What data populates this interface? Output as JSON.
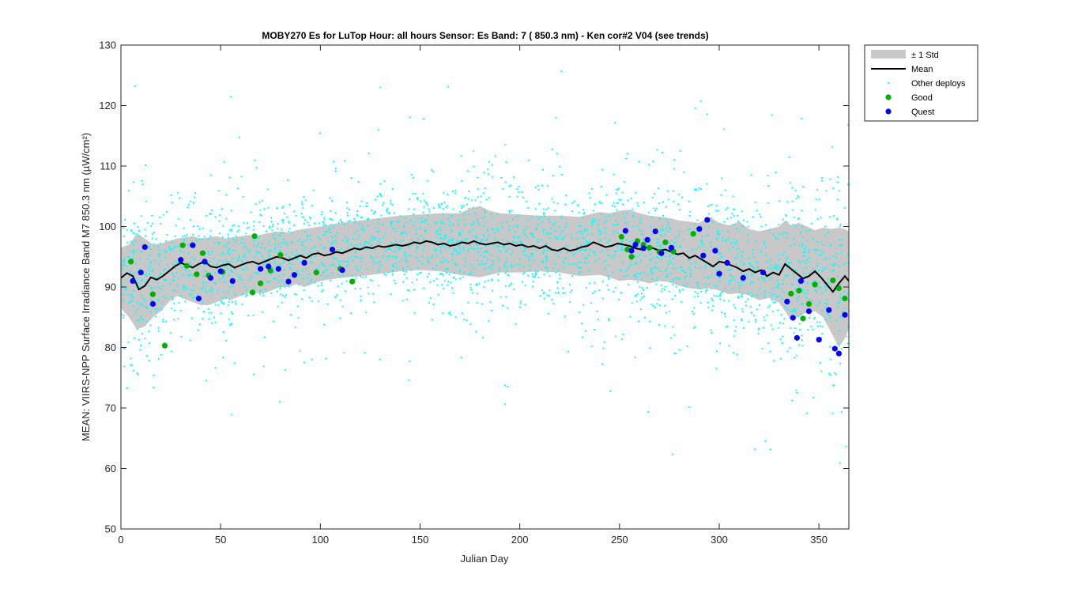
{
  "chart_data": {
    "type": "scatter",
    "title": "MOBY270   Es for LuTop  Hour: all hours  Sensor: Es Band: 7 ( 850.3 nm)  - Ken cor#2 V04 (see trends)",
    "xlabel": "Julian Day",
    "ylabel": "MEAN: VIIRS-NPP Surface Irradiance Band M7 850.3 nm (µW/cm²)",
    "xlim": [
      0,
      365
    ],
    "ylim": [
      50,
      130
    ],
    "x_ticks": [
      0,
      50,
      100,
      150,
      200,
      250,
      300,
      350
    ],
    "y_ticks": [
      50,
      60,
      70,
      80,
      90,
      100,
      110,
      120,
      130
    ],
    "grid": false,
    "legend_position": "outside-top-right",
    "colors": {
      "std_band": "#c8c8c8",
      "mean_line": "#000000",
      "other_deploys": "#00ffff",
      "good": "#00b000",
      "quest": "#0000ff"
    },
    "legend": [
      {
        "key": "std",
        "label": "± 1 Std"
      },
      {
        "key": "mean",
        "label": "Mean"
      },
      {
        "key": "other",
        "label": "Other deploys"
      },
      {
        "key": "good",
        "label": "Good"
      },
      {
        "key": "quest",
        "label": "Quest"
      }
    ],
    "series": [
      {
        "name": "Mean",
        "x": [
          0,
          3,
          6,
          9,
          12,
          15,
          18,
          21,
          24,
          27,
          30,
          33,
          36,
          39,
          42,
          45,
          48,
          51,
          54,
          57,
          60,
          63,
          66,
          69,
          72,
          75,
          78,
          81,
          84,
          87,
          90,
          93,
          96,
          99,
          102,
          105,
          108,
          111,
          114,
          117,
          120,
          123,
          126,
          129,
          132,
          135,
          138,
          141,
          144,
          147,
          150,
          153,
          156,
          159,
          162,
          165,
          168,
          171,
          174,
          177,
          180,
          183,
          186,
          189,
          192,
          195,
          198,
          201,
          204,
          207,
          210,
          213,
          216,
          219,
          222,
          225,
          228,
          231,
          234,
          237,
          240,
          243,
          246,
          249,
          252,
          255,
          258,
          261,
          264,
          267,
          270,
          273,
          276,
          279,
          282,
          285,
          288,
          291,
          294,
          297,
          300,
          303,
          306,
          309,
          312,
          315,
          318,
          321,
          324,
          327,
          330,
          333,
          336,
          339,
          342,
          345,
          348,
          351,
          354,
          357,
          360,
          363,
          365
        ],
        "y": [
          91.5,
          92.3,
          91.8,
          89.6,
          90.2,
          91.6,
          91.2,
          91.8,
          92.6,
          93.4,
          94.0,
          93.6,
          93.2,
          93.8,
          94.2,
          93.4,
          93.2,
          93.6,
          93.8,
          93.2,
          93.6,
          94.0,
          94.2,
          93.8,
          94.2,
          94.6,
          95.0,
          94.8,
          94.4,
          94.8,
          95.2,
          94.8,
          95.4,
          95.6,
          95.2,
          95.4,
          95.8,
          95.6,
          96.0,
          96.4,
          96.2,
          96.6,
          96.4,
          96.8,
          96.6,
          96.8,
          97.0,
          96.8,
          97.0,
          97.4,
          97.2,
          97.6,
          97.4,
          97.0,
          97.2,
          96.8,
          97.0,
          97.4,
          97.2,
          97.6,
          97.2,
          97.0,
          97.2,
          97.4,
          97.0,
          97.2,
          96.8,
          97.0,
          96.6,
          96.8,
          96.4,
          96.8,
          96.2,
          96.0,
          96.4,
          96.0,
          96.2,
          96.6,
          96.8,
          97.4,
          97.0,
          96.6,
          96.8,
          97.2,
          97.0,
          96.8,
          96.4,
          96.2,
          96.6,
          96.4,
          96.0,
          96.2,
          95.8,
          95.4,
          95.6,
          94.8,
          95.2,
          94.6,
          94.0,
          93.4,
          94.2,
          94.0,
          93.6,
          93.2,
          92.6,
          93.0,
          92.4,
          92.8,
          91.8,
          92.4,
          92.0,
          93.8,
          93.0,
          92.2,
          91.4,
          91.8,
          92.6,
          91.6,
          90.4,
          89.2,
          90.6,
          91.8,
          91.0
        ]
      },
      {
        "name": "± 1 Std",
        "x": [
          0,
          4,
          8,
          12,
          16,
          20,
          24,
          28,
          32,
          36,
          40,
          44,
          48,
          52,
          56,
          60,
          64,
          68,
          72,
          76,
          80,
          84,
          88,
          92,
          96,
          100,
          110,
          120,
          130,
          140,
          150,
          160,
          170,
          175,
          180,
          185,
          190,
          200,
          210,
          220,
          230,
          240,
          245,
          250,
          255,
          260,
          265,
          270,
          275,
          280,
          285,
          290,
          295,
          300,
          305,
          310,
          315,
          320,
          325,
          330,
          333,
          336,
          340,
          344,
          348,
          352,
          356,
          360,
          363,
          365
        ],
        "y_lower": [
          86.5,
          85.0,
          83.0,
          83.5,
          85.0,
          86.0,
          87.5,
          88.5,
          88.0,
          87.5,
          87.0,
          87.0,
          87.5,
          88.0,
          88.0,
          88.5,
          89.0,
          89.0,
          89.0,
          89.5,
          90.0,
          90.0,
          90.5,
          90.0,
          90.5,
          91.0,
          91.5,
          91.8,
          92.2,
          92.6,
          92.8,
          92.6,
          92.0,
          91.8,
          91.6,
          92.0,
          92.4,
          92.4,
          92.6,
          92.4,
          91.8,
          92.0,
          91.6,
          91.0,
          91.2,
          91.0,
          90.6,
          91.0,
          90.8,
          90.2,
          89.8,
          89.6,
          89.8,
          89.4,
          88.8,
          89.0,
          88.6,
          87.8,
          88.2,
          87.4,
          86.0,
          84.5,
          85.2,
          85.8,
          86.0,
          85.0,
          82.6,
          80.0,
          81.5,
          83.0
        ],
        "y_upper": [
          96.5,
          97.0,
          98.8,
          98.0,
          97.0,
          97.2,
          97.6,
          98.0,
          98.2,
          98.4,
          98.0,
          98.2,
          98.4,
          98.0,
          98.2,
          98.4,
          98.6,
          98.4,
          98.8,
          99.0,
          99.2,
          99.0,
          99.4,
          99.6,
          99.8,
          100.0,
          100.6,
          101.0,
          101.4,
          101.8,
          102.0,
          102.2,
          102.2,
          103.0,
          103.4,
          102.6,
          102.2,
          102.0,
          101.8,
          101.8,
          101.6,
          102.4,
          102.2,
          102.6,
          102.8,
          102.2,
          101.8,
          101.6,
          101.4,
          101.0,
          100.8,
          100.6,
          101.6,
          100.6,
          100.2,
          100.8,
          99.6,
          99.2,
          99.6,
          100.0,
          101.0,
          100.2,
          100.6,
          100.0,
          99.4,
          99.8,
          99.6,
          99.8,
          99.6,
          99.2
        ]
      },
      {
        "name": "Good",
        "x": [
          5,
          16,
          22,
          31,
          33,
          38,
          41,
          44,
          51,
          66,
          67,
          70,
          75,
          80,
          98,
          110,
          116,
          251,
          254,
          256,
          259,
          262,
          265,
          270,
          273,
          277,
          287,
          336,
          340,
          342,
          345,
          348,
          357,
          360,
          363
        ],
        "y": [
          94.2,
          88.8,
          80.3,
          96.9,
          93.5,
          92.1,
          95.6,
          91.9,
          92.5,
          89.1,
          98.4,
          90.6,
          92.7,
          95.3,
          92.4,
          93.0,
          90.9,
          98.3,
          96.2,
          95.0,
          97.6,
          97.0,
          96.5,
          95.8,
          97.4,
          95.9,
          98.8,
          88.9,
          89.4,
          84.8,
          87.2,
          90.4,
          91.1,
          89.8,
          88.1
        ]
      },
      {
        "name": "Quest",
        "x": [
          6,
          10,
          12,
          16,
          30,
          36,
          39,
          42,
          45,
          50,
          56,
          70,
          74,
          79,
          84,
          87,
          92,
          106,
          111,
          253,
          256,
          258,
          262,
          264,
          268,
          271,
          276,
          290,
          292,
          294,
          298,
          300,
          304,
          312,
          322,
          334,
          337,
          339,
          341,
          345,
          350,
          355,
          358,
          360,
          363
        ],
        "y": [
          91.0,
          92.4,
          96.6,
          87.2,
          94.5,
          96.9,
          88.1,
          94.2,
          91.5,
          92.6,
          91.0,
          93.0,
          93.4,
          93.0,
          90.9,
          92.0,
          94.0,
          96.2,
          92.8,
          99.3,
          96.0,
          97.0,
          96.4,
          97.8,
          99.2,
          95.6,
          96.5,
          99.6,
          95.2,
          101.1,
          96.0,
          92.2,
          94.0,
          91.5,
          92.4,
          87.6,
          84.9,
          81.6,
          91.0,
          86.0,
          81.3,
          86.2,
          79.8,
          79.0,
          85.4
        ]
      }
    ]
  }
}
